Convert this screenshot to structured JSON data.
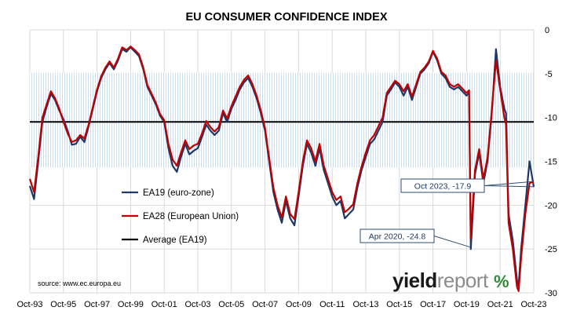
{
  "chart_data": {
    "type": "line",
    "title": "EU CONSUMER CONFIDENCE INDEX",
    "y_axis_position": "right",
    "ylim": [
      -30,
      0
    ],
    "y_ticks": [
      0,
      -5,
      -10,
      -15,
      -20,
      -25,
      -30
    ],
    "xlim": [
      1993.75,
      2023.75
    ],
    "x_tick_values": [
      1993.75,
      1995.75,
      1997.75,
      1999.75,
      2001.75,
      2003.75,
      2005.75,
      2007.75,
      2009.75,
      2011.75,
      2013.75,
      2015.75,
      2017.75,
      2019.75,
      2021.75,
      2023.75
    ],
    "x_tick_labels": [
      "Oct-93",
      "Oct-95",
      "Oct-97",
      "Oct-99",
      "Oct-01",
      "Oct-03",
      "Oct-05",
      "Oct-07",
      "Oct-09",
      "Oct-11",
      "Oct-13",
      "Oct-15",
      "Oct-17",
      "Oct-19",
      "Oct-21",
      "Oct-23"
    ],
    "grid": true,
    "std_band": [
      -15.7,
      -4.9
    ],
    "average": -10.5,
    "legend": {
      "placement": "left-middle",
      "items": [
        {
          "label": "EA19 (euro-zone)",
          "color": "#1f3864"
        },
        {
          "label": "EA28 (European Union)",
          "color": "#c00000"
        },
        {
          "label": "Average (EA19)",
          "color": "#000000"
        }
      ]
    },
    "series": [
      {
        "name": "EA19 (euro-zone)",
        "color": "#1f3864",
        "points": [
          [
            1993.75,
            -17.8
          ],
          [
            1994.0,
            -19.3
          ],
          [
            1994.25,
            -15.0
          ],
          [
            1994.5,
            -10.5
          ],
          [
            1994.75,
            -8.8
          ],
          [
            1995.0,
            -7.3
          ],
          [
            1995.25,
            -8.0
          ],
          [
            1995.5,
            -9.2
          ],
          [
            1995.75,
            -10.2
          ],
          [
            1996.0,
            -11.5
          ],
          [
            1996.25,
            -13.1
          ],
          [
            1996.5,
            -13.0
          ],
          [
            1996.75,
            -12.2
          ],
          [
            1997.0,
            -12.8
          ],
          [
            1997.25,
            -11.0
          ],
          [
            1997.5,
            -9.0
          ],
          [
            1997.75,
            -7.0
          ],
          [
            1998.0,
            -5.5
          ],
          [
            1998.25,
            -4.5
          ],
          [
            1998.5,
            -3.8
          ],
          [
            1998.75,
            -4.5
          ],
          [
            1999.0,
            -3.5
          ],
          [
            1999.25,
            -2.2
          ],
          [
            1999.5,
            -2.5
          ],
          [
            1999.75,
            -2.0
          ],
          [
            2000.0,
            -2.5
          ],
          [
            2000.25,
            -3.0
          ],
          [
            2000.5,
            -4.5
          ],
          [
            2000.75,
            -6.5
          ],
          [
            2001.0,
            -7.5
          ],
          [
            2001.25,
            -8.5
          ],
          [
            2001.5,
            -9.8
          ],
          [
            2001.75,
            -10.5
          ],
          [
            2002.0,
            -13.5
          ],
          [
            2002.25,
            -15.5
          ],
          [
            2002.5,
            -16.2
          ],
          [
            2002.75,
            -14.5
          ],
          [
            2003.0,
            -13.0
          ],
          [
            2003.25,
            -14.2
          ],
          [
            2003.5,
            -13.8
          ],
          [
            2003.75,
            -13.5
          ],
          [
            2004.0,
            -12.2
          ],
          [
            2004.25,
            -10.8
          ],
          [
            2004.5,
            -11.5
          ],
          [
            2004.75,
            -12.0
          ],
          [
            2005.0,
            -11.5
          ],
          [
            2005.25,
            -9.5
          ],
          [
            2005.5,
            -10.5
          ],
          [
            2005.75,
            -9.0
          ],
          [
            2006.0,
            -8.0
          ],
          [
            2006.25,
            -6.8
          ],
          [
            2006.5,
            -6.0
          ],
          [
            2006.75,
            -5.5
          ],
          [
            2007.0,
            -6.5
          ],
          [
            2007.25,
            -7.8
          ],
          [
            2007.5,
            -9.5
          ],
          [
            2007.75,
            -11.5
          ],
          [
            2008.0,
            -15.0
          ],
          [
            2008.25,
            -18.5
          ],
          [
            2008.5,
            -20.5
          ],
          [
            2008.75,
            -22.0
          ],
          [
            2009.0,
            -19.5
          ],
          [
            2009.25,
            -21.5
          ],
          [
            2009.5,
            -22.3
          ],
          [
            2009.75,
            -19.0
          ],
          [
            2010.0,
            -15.5
          ],
          [
            2010.25,
            -13.0
          ],
          [
            2010.5,
            -14.0
          ],
          [
            2010.75,
            -15.5
          ],
          [
            2011.0,
            -13.5
          ],
          [
            2011.25,
            -16.0
          ],
          [
            2011.5,
            -17.5
          ],
          [
            2011.75,
            -19.0
          ],
          [
            2012.0,
            -20.0
          ],
          [
            2012.25,
            -19.5
          ],
          [
            2012.5,
            -21.5
          ],
          [
            2012.75,
            -21.0
          ],
          [
            2013.0,
            -20.5
          ],
          [
            2013.25,
            -18.0
          ],
          [
            2013.5,
            -16.0
          ],
          [
            2013.75,
            -14.5
          ],
          [
            2014.0,
            -13.0
          ],
          [
            2014.25,
            -12.5
          ],
          [
            2014.5,
            -11.5
          ],
          [
            2014.75,
            -10.5
          ],
          [
            2015.0,
            -7.5
          ],
          [
            2015.25,
            -6.8
          ],
          [
            2015.5,
            -6.0
          ],
          [
            2015.75,
            -6.5
          ],
          [
            2016.0,
            -7.5
          ],
          [
            2016.25,
            -6.5
          ],
          [
            2016.5,
            -8.0
          ],
          [
            2016.75,
            -6.5
          ],
          [
            2017.0,
            -5.0
          ],
          [
            2017.25,
            -4.5
          ],
          [
            2017.5,
            -3.8
          ],
          [
            2017.75,
            -2.5
          ],
          [
            2018.0,
            -3.5
          ],
          [
            2018.25,
            -5.0
          ],
          [
            2018.5,
            -5.5
          ],
          [
            2018.75,
            -6.5
          ],
          [
            2019.0,
            -6.8
          ],
          [
            2019.25,
            -6.5
          ],
          [
            2019.5,
            -7.0
          ],
          [
            2019.75,
            -7.5
          ],
          [
            2019.9,
            -7.2
          ],
          [
            2020.0,
            -25.0
          ],
          [
            2020.25,
            -16.5
          ],
          [
            2020.5,
            -14.0
          ],
          [
            2020.75,
            -17.5
          ],
          [
            2021.0,
            -15.0
          ],
          [
            2021.25,
            -9.5
          ],
          [
            2021.5,
            -2.2
          ],
          [
            2021.75,
            -6.5
          ],
          [
            2022.0,
            -9.0
          ],
          [
            2022.1,
            -9.5
          ],
          [
            2022.25,
            -21.0
          ],
          [
            2022.5,
            -24.0
          ],
          [
            2022.75,
            -28.5
          ],
          [
            2022.85,
            -29.2
          ],
          [
            2023.0,
            -25.0
          ],
          [
            2023.25,
            -20.0
          ],
          [
            2023.5,
            -15.0
          ],
          [
            2023.75,
            -17.9
          ]
        ]
      },
      {
        "name": "EA28 (European Union)",
        "color": "#c00000",
        "points": [
          [
            1993.75,
            -17.0
          ],
          [
            1994.0,
            -18.5
          ],
          [
            1994.25,
            -14.5
          ],
          [
            1994.5,
            -10.0
          ],
          [
            1994.75,
            -8.5
          ],
          [
            1995.0,
            -7.0
          ],
          [
            1995.25,
            -7.8
          ],
          [
            1995.5,
            -9.0
          ],
          [
            1995.75,
            -10.5
          ],
          [
            1996.0,
            -11.8
          ],
          [
            1996.25,
            -12.8
          ],
          [
            1996.5,
            -12.6
          ],
          [
            1996.75,
            -12.0
          ],
          [
            1997.0,
            -12.4
          ],
          [
            1997.25,
            -10.8
          ],
          [
            1997.5,
            -8.8
          ],
          [
            1997.75,
            -6.8
          ],
          [
            1998.0,
            -5.3
          ],
          [
            1998.25,
            -4.3
          ],
          [
            1998.5,
            -3.6
          ],
          [
            1998.75,
            -4.3
          ],
          [
            1999.0,
            -3.3
          ],
          [
            1999.25,
            -2.0
          ],
          [
            1999.5,
            -2.3
          ],
          [
            1999.75,
            -1.9
          ],
          [
            2000.0,
            -2.3
          ],
          [
            2000.25,
            -2.8
          ],
          [
            2000.5,
            -4.3
          ],
          [
            2000.75,
            -6.3
          ],
          [
            2001.0,
            -7.3
          ],
          [
            2001.25,
            -8.3
          ],
          [
            2001.5,
            -9.6
          ],
          [
            2001.75,
            -10.3
          ],
          [
            2002.0,
            -13.0
          ],
          [
            2002.25,
            -14.8
          ],
          [
            2002.5,
            -15.5
          ],
          [
            2002.75,
            -14.0
          ],
          [
            2003.0,
            -12.6
          ],
          [
            2003.25,
            -13.6
          ],
          [
            2003.5,
            -13.2
          ],
          [
            2003.75,
            -13.0
          ],
          [
            2004.0,
            -11.8
          ],
          [
            2004.25,
            -10.4
          ],
          [
            2004.5,
            -11.1
          ],
          [
            2004.75,
            -11.6
          ],
          [
            2005.0,
            -11.1
          ],
          [
            2005.25,
            -9.2
          ],
          [
            2005.5,
            -10.1
          ],
          [
            2005.75,
            -8.7
          ],
          [
            2006.0,
            -7.6
          ],
          [
            2006.25,
            -6.5
          ],
          [
            2006.5,
            -5.7
          ],
          [
            2006.75,
            -5.2
          ],
          [
            2007.0,
            -6.2
          ],
          [
            2007.25,
            -7.5
          ],
          [
            2007.5,
            -9.2
          ],
          [
            2007.75,
            -11.2
          ],
          [
            2008.0,
            -14.6
          ],
          [
            2008.25,
            -18.0
          ],
          [
            2008.5,
            -20.0
          ],
          [
            2008.75,
            -21.4
          ],
          [
            2009.0,
            -19.0
          ],
          [
            2009.25,
            -21.0
          ],
          [
            2009.5,
            -21.6
          ],
          [
            2009.75,
            -18.5
          ],
          [
            2010.0,
            -15.0
          ],
          [
            2010.25,
            -12.6
          ],
          [
            2010.5,
            -13.5
          ],
          [
            2010.75,
            -15.0
          ],
          [
            2011.0,
            -13.0
          ],
          [
            2011.25,
            -15.5
          ],
          [
            2011.5,
            -17.0
          ],
          [
            2011.75,
            -18.5
          ],
          [
            2012.0,
            -19.4
          ],
          [
            2012.25,
            -19.0
          ],
          [
            2012.5,
            -20.8
          ],
          [
            2012.75,
            -20.4
          ],
          [
            2013.0,
            -19.9
          ],
          [
            2013.25,
            -17.5
          ],
          [
            2013.5,
            -15.6
          ],
          [
            2013.75,
            -14.0
          ],
          [
            2014.0,
            -12.6
          ],
          [
            2014.25,
            -12.0
          ],
          [
            2014.5,
            -11.0
          ],
          [
            2014.75,
            -10.0
          ],
          [
            2015.0,
            -7.2
          ],
          [
            2015.25,
            -6.5
          ],
          [
            2015.5,
            -5.8
          ],
          [
            2015.75,
            -6.2
          ],
          [
            2016.0,
            -7.0
          ],
          [
            2016.25,
            -6.2
          ],
          [
            2016.5,
            -7.6
          ],
          [
            2016.75,
            -6.2
          ],
          [
            2017.0,
            -4.8
          ],
          [
            2017.25,
            -4.3
          ],
          [
            2017.5,
            -3.6
          ],
          [
            2017.75,
            -2.4
          ],
          [
            2018.0,
            -3.3
          ],
          [
            2018.25,
            -4.8
          ],
          [
            2018.5,
            -5.2
          ],
          [
            2018.75,
            -6.2
          ],
          [
            2019.0,
            -6.5
          ],
          [
            2019.25,
            -6.2
          ],
          [
            2019.5,
            -6.7
          ],
          [
            2019.75,
            -7.2
          ],
          [
            2019.9,
            -6.9
          ],
          [
            2020.0,
            -23.8
          ],
          [
            2020.25,
            -16.0
          ],
          [
            2020.5,
            -13.6
          ],
          [
            2020.75,
            -17.0
          ],
          [
            2021.0,
            -14.6
          ],
          [
            2021.25,
            -9.2
          ],
          [
            2021.5,
            -3.5
          ],
          [
            2021.75,
            -6.8
          ],
          [
            2022.0,
            -10.0
          ],
          [
            2022.1,
            -10.8
          ],
          [
            2022.25,
            -22.0
          ],
          [
            2022.5,
            -25.0
          ],
          [
            2022.75,
            -29.3
          ],
          [
            2022.85,
            -29.8
          ],
          [
            2023.0,
            -26.0
          ],
          [
            2023.25,
            -21.0
          ],
          [
            2023.5,
            -17.5
          ],
          [
            2023.75,
            -17.3
          ]
        ]
      }
    ],
    "annotations": [
      {
        "text": "Oct 2023, -17.9",
        "x": 2023.75,
        "y": -17.9
      },
      {
        "text": "Apr 2020, -24.8",
        "x": 2020.0,
        "y": -24.8
      }
    ],
    "source": "source: www.ec.europa.eu",
    "logo": {
      "text1": "yield",
      "text2": "report",
      "text3": "%"
    }
  }
}
